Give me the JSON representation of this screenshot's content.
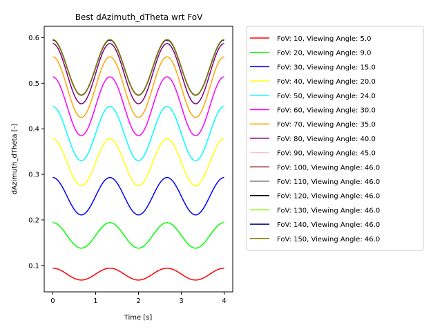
{
  "chart_data": {
    "type": "line",
    "title": "Best dAzimuth_dTheta wrt FoV",
    "xlabel": "Time [s]",
    "ylabel": "dAzimuth_dTheta [-]",
    "xlim": [
      -0.2,
      4.2
    ],
    "ylim": [
      0.042,
      0.625
    ],
    "xticks": [
      0,
      1,
      2,
      3,
      4
    ],
    "xtick_labels": [
      "0",
      "1",
      "2",
      "3",
      "4"
    ],
    "yticks": [
      0.1,
      0.2,
      0.3,
      0.4,
      0.5,
      0.6
    ],
    "ytick_labels": [
      "0.1",
      "0.2",
      "0.3",
      "0.4",
      "0.5",
      "0.6"
    ],
    "grid": false,
    "legend_placement": "outside-right",
    "period": 1.3333,
    "x_range": [
      0,
      4
    ],
    "series": [
      {
        "name": "FoV: 10, Viewing Angle: 5.0",
        "color": "#ff0000",
        "max": 0.094,
        "min": 0.068
      },
      {
        "name": "FoV: 20, Viewing Angle: 9.0",
        "color": "#00ff00",
        "max": 0.194,
        "min": 0.138
      },
      {
        "name": "FoV: 30, Viewing Angle: 15.0",
        "color": "#0000ff",
        "max": 0.293,
        "min": 0.211
      },
      {
        "name": "FoV: 40, Viewing Angle: 20.0",
        "color": "#ffff00",
        "max": 0.378,
        "min": 0.275
      },
      {
        "name": "FoV: 50, Viewing Angle: 24.0",
        "color": "#00ffff",
        "max": 0.449,
        "min": 0.33
      },
      {
        "name": "FoV: 60, Viewing Angle: 30.0",
        "color": "#ff00ff",
        "max": 0.514,
        "min": 0.385
      },
      {
        "name": "FoV: 70, Viewing Angle: 35.0",
        "color": "#ffa500",
        "max": 0.558,
        "min": 0.425
      },
      {
        "name": "FoV: 80, Viewing Angle: 40.0",
        "color": "#800080",
        "max": 0.587,
        "min": 0.455
      },
      {
        "name": "FoV: 90, Viewing Angle: 45.0",
        "color": "#ffc0cb",
        "max": 0.595,
        "min": 0.473
      },
      {
        "name": "FoV: 100, Viewing Angle: 46.0",
        "color": "#a52a2a",
        "max": 0.595,
        "min": 0.474
      },
      {
        "name": "FoV: 110, Viewing Angle: 46.0",
        "color": "#808080",
        "max": 0.595,
        "min": 0.474
      },
      {
        "name": "FoV: 120, Viewing Angle: 46.0",
        "color": "#000000",
        "max": 0.595,
        "min": 0.474
      },
      {
        "name": "FoV: 130, Viewing Angle: 46.0",
        "color": "#7cfc00",
        "max": 0.595,
        "min": 0.474
      },
      {
        "name": "FoV: 140, Viewing Angle: 46.0",
        "color": "#000080",
        "max": 0.595,
        "min": 0.474
      },
      {
        "name": "FoV: 150, Viewing Angle: 46.0",
        "color": "#808000",
        "max": 0.596,
        "min": 0.474
      }
    ]
  }
}
